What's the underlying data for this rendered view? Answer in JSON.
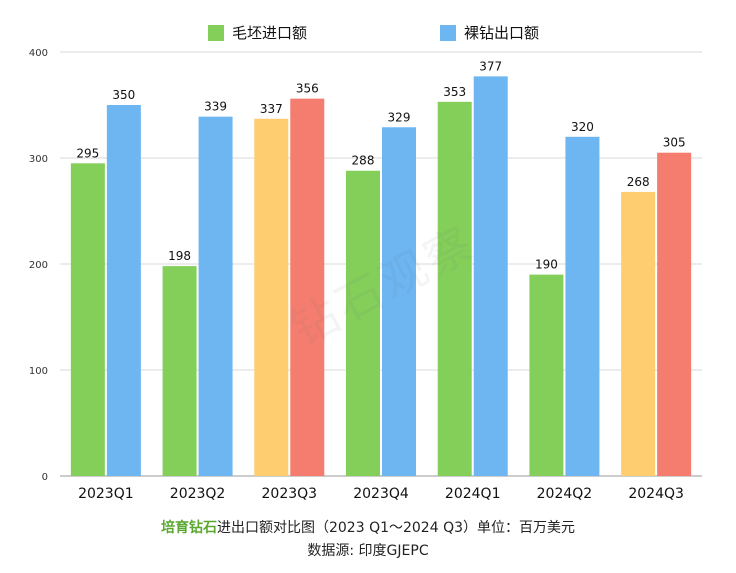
{
  "legend": {
    "items": [
      {
        "label": "毛坯进口额",
        "color": "#84cf5a"
      },
      {
        "label": "裸钻出口额",
        "color": "#6db6f2"
      }
    ]
  },
  "chart_data": {
    "type": "bar",
    "categories": [
      "2023Q1",
      "2023Q2",
      "2023Q3",
      "2023Q4",
      "2024Q1",
      "2024Q2",
      "2024Q3"
    ],
    "series": [
      {
        "name": "毛坯进口额",
        "values": [
          295,
          198,
          337,
          288,
          353,
          190,
          268
        ]
      },
      {
        "name": "裸钻出口额",
        "values": [
          350,
          339,
          356,
          329,
          377,
          320,
          305
        ]
      }
    ],
    "bar_colors": {
      "import": [
        "#84cf5a",
        "#84cf5a",
        "#fdcd70",
        "#84cf5a",
        "#84cf5a",
        "#84cf5a",
        "#fdcd70"
      ],
      "export": [
        "#6db6f2",
        "#6db6f2",
        "#f47d6f",
        "#6db6f2",
        "#6db6f2",
        "#6db6f2",
        "#f47d6f"
      ]
    },
    "ylim": [
      0,
      400
    ],
    "yticks": [
      0,
      100,
      200,
      300,
      400
    ],
    "grid": true,
    "legend_position": "top-center"
  },
  "caption": {
    "highlight": "培育钻石",
    "title_rest": "进出口额对比图（2023 Q1～2024 Q3）单位：百万美元",
    "source": "数据源: 印度GJEPC"
  },
  "watermark": "钻石观察"
}
